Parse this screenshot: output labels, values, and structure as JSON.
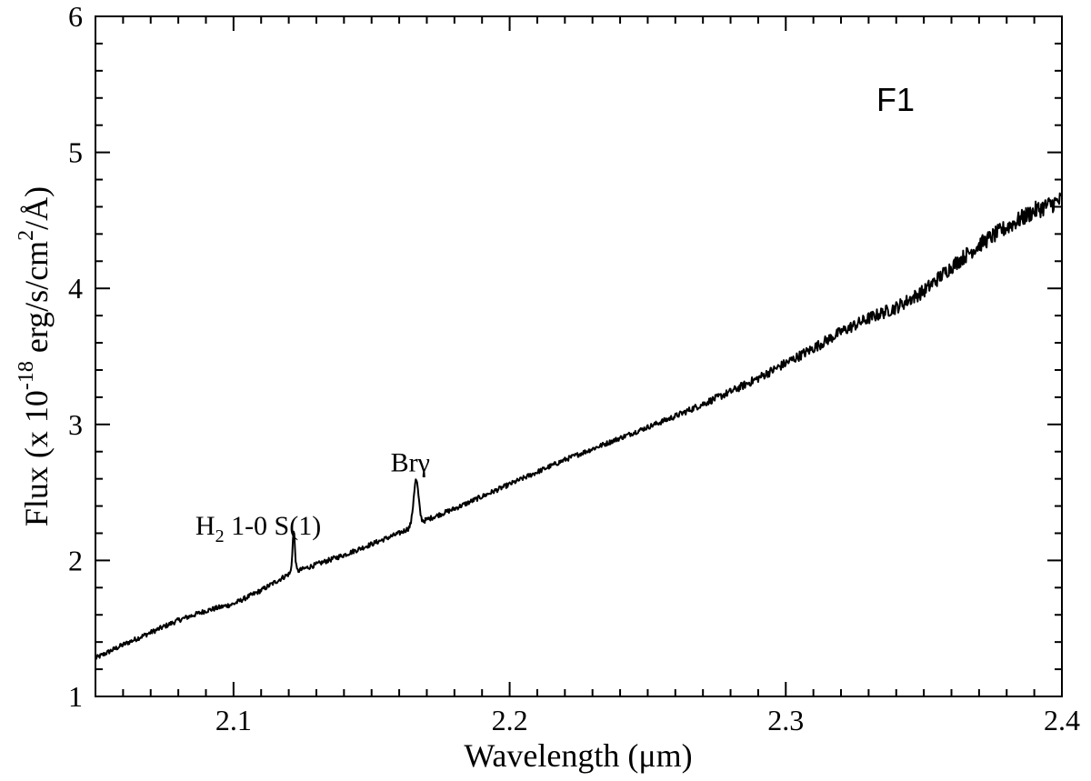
{
  "chart_data": {
    "type": "line",
    "panel_label": "F1",
    "xlabel": "Wavelength (μm)",
    "ylabel": {
      "prefix": "Flux (x 10",
      "exp1": "-18",
      "middle": " erg/s/cm",
      "exp2": "2",
      "suffix": "/Å)"
    },
    "xlim": [
      2.05,
      2.4
    ],
    "ylim": [
      1,
      6
    ],
    "x_ticks": [
      2.1,
      2.2,
      2.3,
      2.4
    ],
    "x_tick_labels": [
      "2.1",
      "2.2",
      "2.3",
      "2.4"
    ],
    "x_minor_step": 0.01,
    "y_ticks": [
      1,
      2,
      3,
      4,
      5,
      6
    ],
    "y_tick_labels": [
      "1",
      "2",
      "3",
      "4",
      "5",
      "6"
    ],
    "y_minor_step": 0.2,
    "grid": false,
    "line_color": "#000000",
    "series": [
      {
        "x": [
          2.05,
          2.06,
          2.07,
          2.08,
          2.09,
          2.1,
          2.11,
          2.115,
          2.12,
          2.13,
          2.14,
          2.15,
          2.16,
          2.165,
          2.17,
          2.18,
          2.19,
          2.2,
          2.21,
          2.22,
          2.23,
          2.24,
          2.25,
          2.26,
          2.27,
          2.28,
          2.29,
          2.3,
          2.31,
          2.32,
          2.33,
          2.34,
          2.35,
          2.36,
          2.37,
          2.38,
          2.39,
          2.4
        ],
        "y": [
          1.28,
          1.38,
          1.47,
          1.56,
          1.63,
          1.68,
          1.78,
          1.84,
          1.9,
          1.97,
          2.04,
          2.12,
          2.2,
          2.25,
          2.3,
          2.38,
          2.47,
          2.56,
          2.65,
          2.74,
          2.82,
          2.9,
          2.98,
          3.06,
          3.15,
          3.24,
          3.34,
          3.45,
          3.56,
          3.68,
          3.78,
          3.86,
          3.98,
          4.16,
          4.32,
          4.45,
          4.57,
          4.65
        ],
        "emission_lines": [
          {
            "center": 2.1218,
            "height": 0.3,
            "width": 0.00045
          },
          {
            "center": 2.1661,
            "height": 0.33,
            "width": 0.0009
          }
        ]
      }
    ],
    "annotations": [
      {
        "label_main": "H",
        "label_sub": "2",
        "label_rest": " 1-0 S(1)",
        "x": 2.1218,
        "y": 2.27
      },
      {
        "label_main": "Brγ",
        "x": 2.165,
        "y": 2.72
      }
    ]
  }
}
